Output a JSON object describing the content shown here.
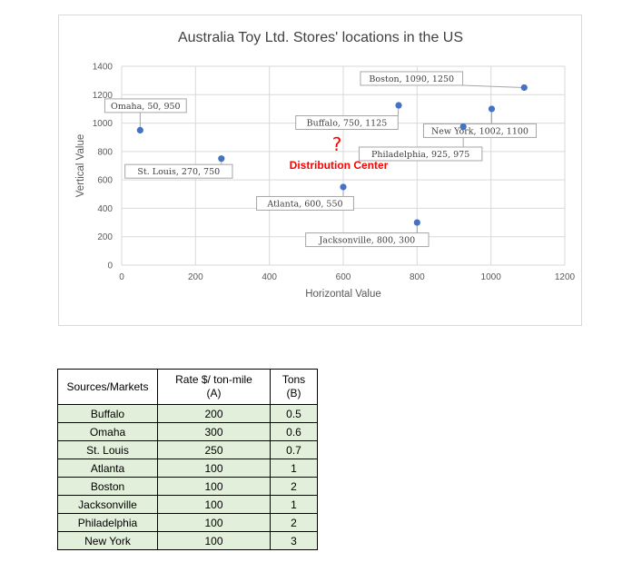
{
  "chart_data": {
    "type": "scatter",
    "title": "Australia Toy Ltd. Stores' locations in the US",
    "xlabel": "Horizontal Value",
    "ylabel": "Vertical Value",
    "xlim": [
      0,
      1200
    ],
    "ylim": [
      0,
      1400
    ],
    "xticks": [
      0,
      200,
      400,
      600,
      800,
      1000,
      1200
    ],
    "yticks": [
      0,
      200,
      400,
      600,
      800,
      1000,
      1200,
      1400
    ],
    "grid": true,
    "point_color": "#4472c4",
    "points": [
      {
        "label": "Omaha, 50, 950",
        "x": 50,
        "y": 950
      },
      {
        "label": "St. Louis, 270, 750",
        "x": 270,
        "y": 750
      },
      {
        "label": "Atlanta, 600, 550",
        "x": 600,
        "y": 550
      },
      {
        "label": "Buffalo, 750, 1125",
        "x": 750,
        "y": 1125
      },
      {
        "label": "Jacksonville, 800, 300",
        "x": 800,
        "y": 300
      },
      {
        "label": "Philadelphia, 925, 975",
        "x": 925,
        "y": 975
      },
      {
        "label": "New York, 1002, 1100",
        "x": 1002,
        "y": 1100
      },
      {
        "label": "Boston, 1090, 1250",
        "x": 1090,
        "y": 1250
      }
    ],
    "annotation": {
      "symbol": "?",
      "text": "Distribution Center",
      "color": "#ff0000"
    }
  },
  "table": {
    "headers": [
      "Sources/Markets",
      "Rate $/ ton-mile\n(A)",
      "Tons\n(B)"
    ],
    "header_col1": "Sources/Markets",
    "header_col2_line1": "Rate $/ ton-mile",
    "header_col2_line2": "(A)",
    "header_col3_line1": "Tons",
    "header_col3_line2": "(B)",
    "rows": [
      [
        "Buffalo",
        "200",
        "0.5"
      ],
      [
        "Omaha",
        "300",
        "0.6"
      ],
      [
        "St. Louis",
        "250",
        "0.7"
      ],
      [
        "Atlanta",
        "100",
        "1"
      ],
      [
        "Boston",
        "100",
        "2"
      ],
      [
        "Jacksonville",
        "100",
        "1"
      ],
      [
        "Philadelphia",
        "100",
        "2"
      ],
      [
        "New York",
        "100",
        "3"
      ]
    ],
    "row_fill": "#e2efda"
  }
}
